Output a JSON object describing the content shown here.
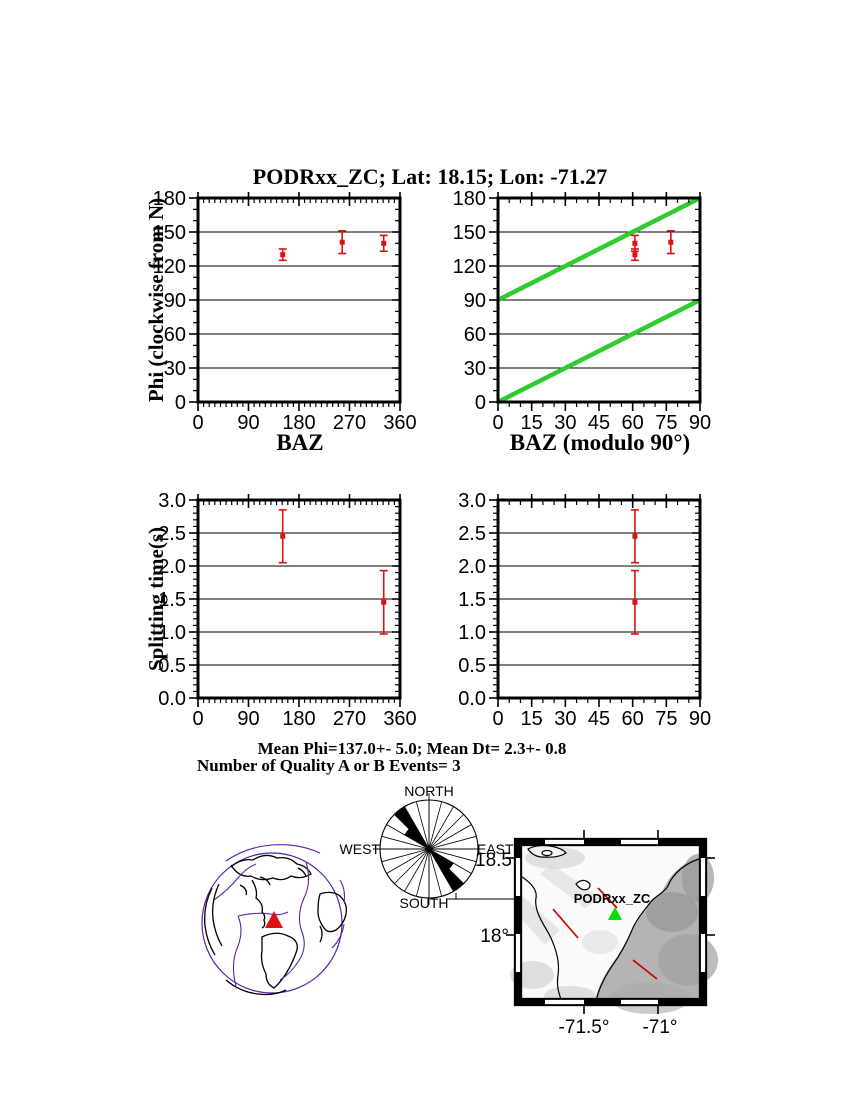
{
  "title": "PODRxx_ZC; Lat:  18.15;  Lon:  -71.27",
  "colors": {
    "data_red": "#dd1111",
    "reference_green": "#2ecc2e",
    "station_green": "#00dd00",
    "plate_purple": "#5a22aa",
    "frame_black": "#000000"
  },
  "chart_data": [
    {
      "id": "phi-vs-baz",
      "type": "scatter",
      "xlabel": "BAZ",
      "ylabel": "Phi (clockwise from N)",
      "xlim": [
        0,
        360
      ],
      "ylim": [
        0,
        180
      ],
      "xticks": [
        0,
        90,
        180,
        270,
        360
      ],
      "xticklabels": [
        "0",
        "90",
        "180",
        "270",
        "360"
      ],
      "yticks": [
        0,
        30,
        60,
        90,
        120,
        150,
        180
      ],
      "yticklabels": [
        "0",
        "30",
        "60",
        "90",
        "120",
        "150",
        "180"
      ],
      "xminor": 10,
      "yminor": 10,
      "grid": "horizontal",
      "points": [
        {
          "x": 151,
          "y": 130,
          "err": 5
        },
        {
          "x": 257,
          "y": 141,
          "err": 10
        },
        {
          "x": 331,
          "y": 140,
          "err": 7
        }
      ]
    },
    {
      "id": "phi-vs-baz-mod90",
      "type": "scatter",
      "xlabel": "BAZ (modulo 90°)",
      "ylabel": "",
      "xlim": [
        0,
        90
      ],
      "ylim": [
        0,
        180
      ],
      "xticks": [
        0,
        15,
        30,
        45,
        60,
        75,
        90
      ],
      "xticklabels": [
        "0",
        "15",
        "30",
        "45",
        "60",
        "75",
        "90"
      ],
      "yticks": [
        0,
        30,
        60,
        90,
        120,
        150,
        180
      ],
      "yticklabels": [
        "0",
        "30",
        "60",
        "90",
        "120",
        "150",
        "180"
      ],
      "xminor": 5,
      "yminor": 10,
      "grid": "horizontal",
      "reference_lines": [
        {
          "x1": 0,
          "y1": 0,
          "x2": 90,
          "y2": 90
        },
        {
          "x1": 0,
          "y1": 90,
          "x2": 90,
          "y2": 180
        }
      ],
      "points": [
        {
          "x": 61,
          "y": 130,
          "err": 5
        },
        {
          "x": 61,
          "y": 140,
          "err": 7
        },
        {
          "x": 77,
          "y": 141,
          "err": 10
        }
      ]
    },
    {
      "id": "dt-vs-baz",
      "type": "scatter",
      "xlabel": "",
      "ylabel": "Splitting time(s)",
      "xlim": [
        0,
        360
      ],
      "ylim": [
        0,
        3
      ],
      "xticks": [
        0,
        90,
        180,
        270,
        360
      ],
      "xticklabels": [
        "0",
        "90",
        "180",
        "270",
        "360"
      ],
      "yticks": [
        0,
        0.5,
        1,
        1.5,
        2,
        2.5,
        3
      ],
      "yticklabels": [
        "0.0",
        "0.5",
        "1.0",
        "1.5",
        "2.0",
        "2.5",
        "3.0"
      ],
      "xminor": 10,
      "yminor": 0.1,
      "grid": "horizontal",
      "points": [
        {
          "x": 151,
          "y": 2.45,
          "err": 0.4
        },
        {
          "x": 331,
          "y": 1.45,
          "err": 0.48
        }
      ]
    },
    {
      "id": "dt-vs-baz-mod90",
      "type": "scatter",
      "xlabel": "",
      "ylabel": "",
      "xlim": [
        0,
        90
      ],
      "ylim": [
        0,
        3
      ],
      "xticks": [
        0,
        15,
        30,
        45,
        60,
        75,
        90
      ],
      "xticklabels": [
        "0",
        "15",
        "30",
        "45",
        "60",
        "75",
        "90"
      ],
      "yticks": [
        0,
        0.5,
        1,
        1.5,
        2,
        2.5,
        3
      ],
      "yticklabels": [
        "0.0",
        "0.5",
        "1.0",
        "1.5",
        "2.0",
        "2.5",
        "3.0"
      ],
      "xminor": 5,
      "yminor": 0.1,
      "grid": "horizontal",
      "points": [
        {
          "x": 61,
          "y": 2.45,
          "err": 0.4
        },
        {
          "x": 61,
          "y": 1.45,
          "err": 0.48
        }
      ]
    }
  ],
  "summary": {
    "mean_line": "Mean Phi=137.0+-  5.0; Mean Dt=  2.3+-  0.8",
    "quality_line": "Number of Quality A or B Events=  3"
  },
  "rose": {
    "north": "NORTH",
    "south": "SOUTH",
    "east": "EAST",
    "west": "WEST",
    "sector_deg": 15,
    "wedges": [
      {
        "from": 120,
        "to": 135,
        "len": 0.58
      },
      {
        "from": 135,
        "to": 150,
        "len": 1
      },
      {
        "from": 300,
        "to": 315,
        "len": 0.58
      },
      {
        "from": 315,
        "to": 330,
        "len": 1
      }
    ]
  },
  "globe": {
    "marker": "station-triangle"
  },
  "map": {
    "station_label": "PODRxx_ZC",
    "lon_labels": [
      "-71.5°",
      "-71°"
    ],
    "lat_labels": [
      "18.5",
      "18°"
    ],
    "splitting_bars": 3
  }
}
